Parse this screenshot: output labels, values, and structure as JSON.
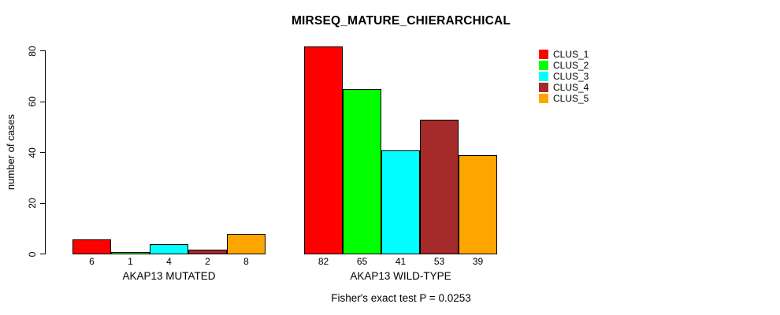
{
  "chart_data": {
    "type": "bar",
    "title": "MIRSEQ_MATURE_CHIERARCHICAL",
    "ylabel": "number of cases",
    "xlabel": "",
    "ylim": [
      0,
      80
    ],
    "yticks": [
      0,
      20,
      40,
      60,
      80
    ],
    "grid": false,
    "show_bar_values": true,
    "legend_position": "top-right",
    "categories": [
      "AKAP13 MUTATED",
      "AKAP13 WILD-TYPE"
    ],
    "series": [
      {
        "name": "CLUS_1",
        "color": "#ff0000",
        "values": [
          6,
          82
        ]
      },
      {
        "name": "CLUS_2",
        "color": "#00ff00",
        "values": [
          1,
          65
        ]
      },
      {
        "name": "CLUS_3",
        "color": "#00ffff",
        "values": [
          4,
          41
        ]
      },
      {
        "name": "CLUS_4",
        "color": "#a52a2a",
        "values": [
          2,
          53
        ]
      },
      {
        "name": "CLUS_5",
        "color": "#ffa500",
        "values": [
          8,
          39
        ]
      }
    ],
    "annotation": "Fisher's exact test P = 0.0253"
  }
}
